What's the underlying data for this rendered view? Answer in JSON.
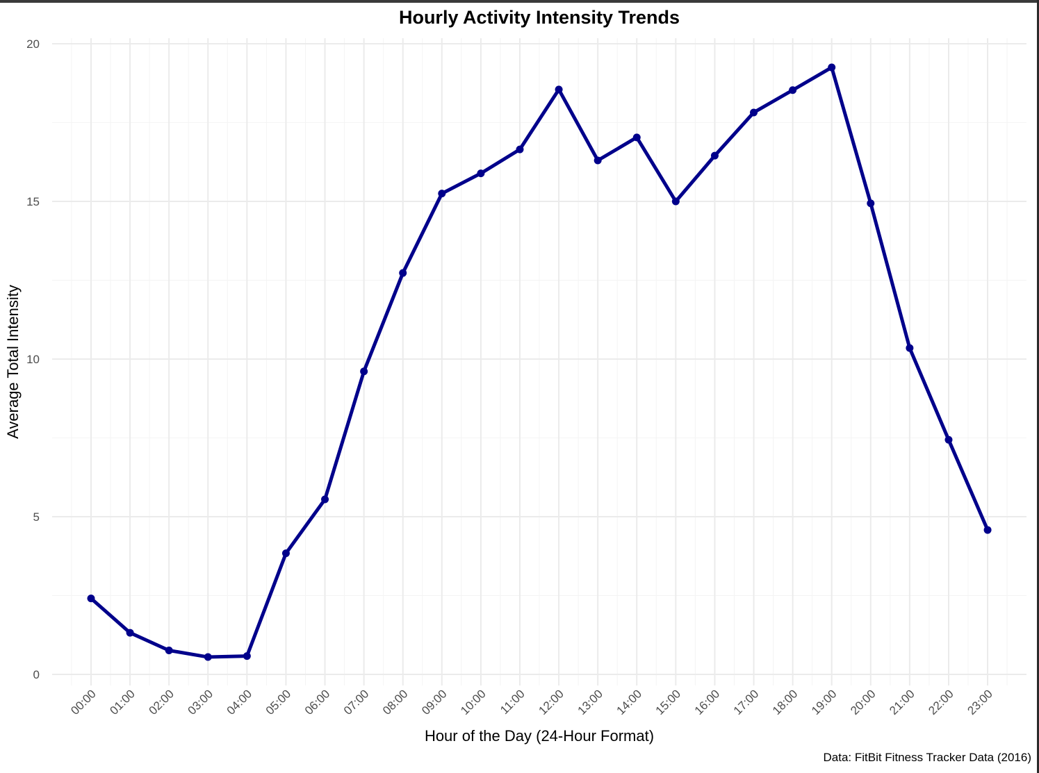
{
  "chart_data": {
    "type": "line",
    "title": "Hourly Activity Intensity Trends",
    "xlabel": "Hour of the Day (24-Hour Format)",
    "ylabel": "Average Total Intensity",
    "caption": "Data: FitBit Fitness Tracker Data (2016)",
    "categories": [
      "00:00",
      "01:00",
      "02:00",
      "03:00",
      "04:00",
      "05:00",
      "06:00",
      "07:00",
      "08:00",
      "09:00",
      "10:00",
      "11:00",
      "12:00",
      "13:00",
      "14:00",
      "15:00",
      "16:00",
      "17:00",
      "18:00",
      "19:00",
      "20:00",
      "21:00",
      "22:00",
      "23:00"
    ],
    "values": [
      2.41,
      1.32,
      0.76,
      0.55,
      0.58,
      3.84,
      5.55,
      9.61,
      12.73,
      15.25,
      15.89,
      16.65,
      18.55,
      16.3,
      17.03,
      15.0,
      16.45,
      17.82,
      18.53,
      19.25,
      14.94,
      10.35,
      7.44,
      4.58
    ],
    "ylim": [
      0,
      20
    ],
    "yticks": [
      0,
      5,
      10,
      15,
      20
    ],
    "grid": true,
    "colors": {
      "line": "#00008B",
      "grid_major": "#EBEBEB",
      "grid_minor": "#F4F4F4",
      "tick_text": "#4D4D4D"
    }
  }
}
